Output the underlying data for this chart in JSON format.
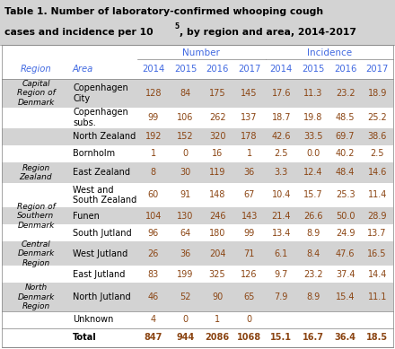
{
  "title_line1": "Table 1. Number of laboratory-confirmed whooping cough",
  "title_line2_pre": "cases and incidence per 10",
  "title_superscript": "5",
  "title_line2_post": ", by region and area, 2014-2017",
  "col_headers_left": [
    "Region",
    "Area"
  ],
  "col_headers_years": [
    "2014",
    "2015",
    "2016",
    "2017",
    "2014",
    "2015",
    "2016",
    "2017"
  ],
  "group_label_number": "Number",
  "group_label_incidence": "Incidence",
  "rows": [
    {
      "region": "Capital\nRegion of\nDenmark",
      "area": "Copenhagen\nCity",
      "num": [
        "128",
        "84",
        "175",
        "145"
      ],
      "inc": [
        "17.6",
        "11.3",
        "23.2",
        "18.9"
      ],
      "rh": 0.085
    },
    {
      "region": "",
      "area": "Copenhagen\nsubs.",
      "num": [
        "99",
        "106",
        "262",
        "137"
      ],
      "inc": [
        "18.7",
        "19.8",
        "48.5",
        "25.2"
      ],
      "rh": 0.06
    },
    {
      "region": "",
      "area": "North Zealand",
      "num": [
        "192",
        "152",
        "320",
        "178"
      ],
      "inc": [
        "42.6",
        "33.5",
        "69.7",
        "38.6"
      ],
      "rh": 0.048
    },
    {
      "region": "",
      "area": "Bornholm",
      "num": [
        "1",
        "0",
        "16",
        "1"
      ],
      "inc": [
        "2.5",
        "0.0",
        "40.2",
        "2.5"
      ],
      "rh": 0.048
    },
    {
      "region": "Region\nZealand",
      "area": "East Zealand",
      "num": [
        "8",
        "30",
        "119",
        "36"
      ],
      "inc": [
        "3.3",
        "12.4",
        "48.4",
        "14.6"
      ],
      "rh": 0.056
    },
    {
      "region": "",
      "area": "West and\nSouth Zealand",
      "num": [
        "60",
        "91",
        "148",
        "67"
      ],
      "inc": [
        "10.4",
        "15.7",
        "25.3",
        "11.4"
      ],
      "rh": 0.07
    },
    {
      "region": "Region of\nSouthern\nDenmark",
      "area": "Funen",
      "num": [
        "104",
        "130",
        "246",
        "143"
      ],
      "inc": [
        "21.4",
        "26.6",
        "50.0",
        "28.9"
      ],
      "rh": 0.05
    },
    {
      "region": "",
      "area": "South Jutland",
      "num": [
        "96",
        "64",
        "180",
        "99"
      ],
      "inc": [
        "13.4",
        "8.9",
        "24.9",
        "13.7"
      ],
      "rh": 0.048
    },
    {
      "region": "Central\nDenmark\nRegion",
      "area": "West Jutland",
      "num": [
        "26",
        "36",
        "204",
        "71"
      ],
      "inc": [
        "6.1",
        "8.4",
        "47.6",
        "16.5"
      ],
      "rh": 0.05
    },
    {
      "region": "",
      "area": "East Jutland",
      "num": [
        "83",
        "199",
        "325",
        "126"
      ],
      "inc": [
        "9.7",
        "23.2",
        "37.4",
        "14.4"
      ],
      "rh": 0.048
    },
    {
      "region": "North\nDenmark\nRegion",
      "area": "North Jutland",
      "num": [
        "46",
        "52",
        "90",
        "65"
      ],
      "inc": [
        "7.9",
        "8.9",
        "15.4",
        "11.1"
      ],
      "rh": 0.08
    },
    {
      "region": "",
      "area": "Unknown",
      "num": [
        "4",
        "0",
        "1",
        "0"
      ],
      "inc": [
        "",
        "",
        "",
        ""
      ],
      "rh": 0.042
    },
    {
      "region": "",
      "area": "Total",
      "num": [
        "847",
        "944",
        "2086",
        "1068"
      ],
      "inc": [
        "15.1",
        "16.7",
        "36.4",
        "18.5"
      ],
      "rh": 0.046
    }
  ],
  "shaded_row_indices": [
    0,
    2,
    4,
    6,
    8,
    10
  ],
  "shade_color": "#d3d3d3",
  "title_bg_color": "#d3d3d3",
  "bg_color": "#ffffff",
  "text_color": "#000000",
  "number_color": "#8B4513",
  "header_color": "#4169E1",
  "line_color": "#000000"
}
